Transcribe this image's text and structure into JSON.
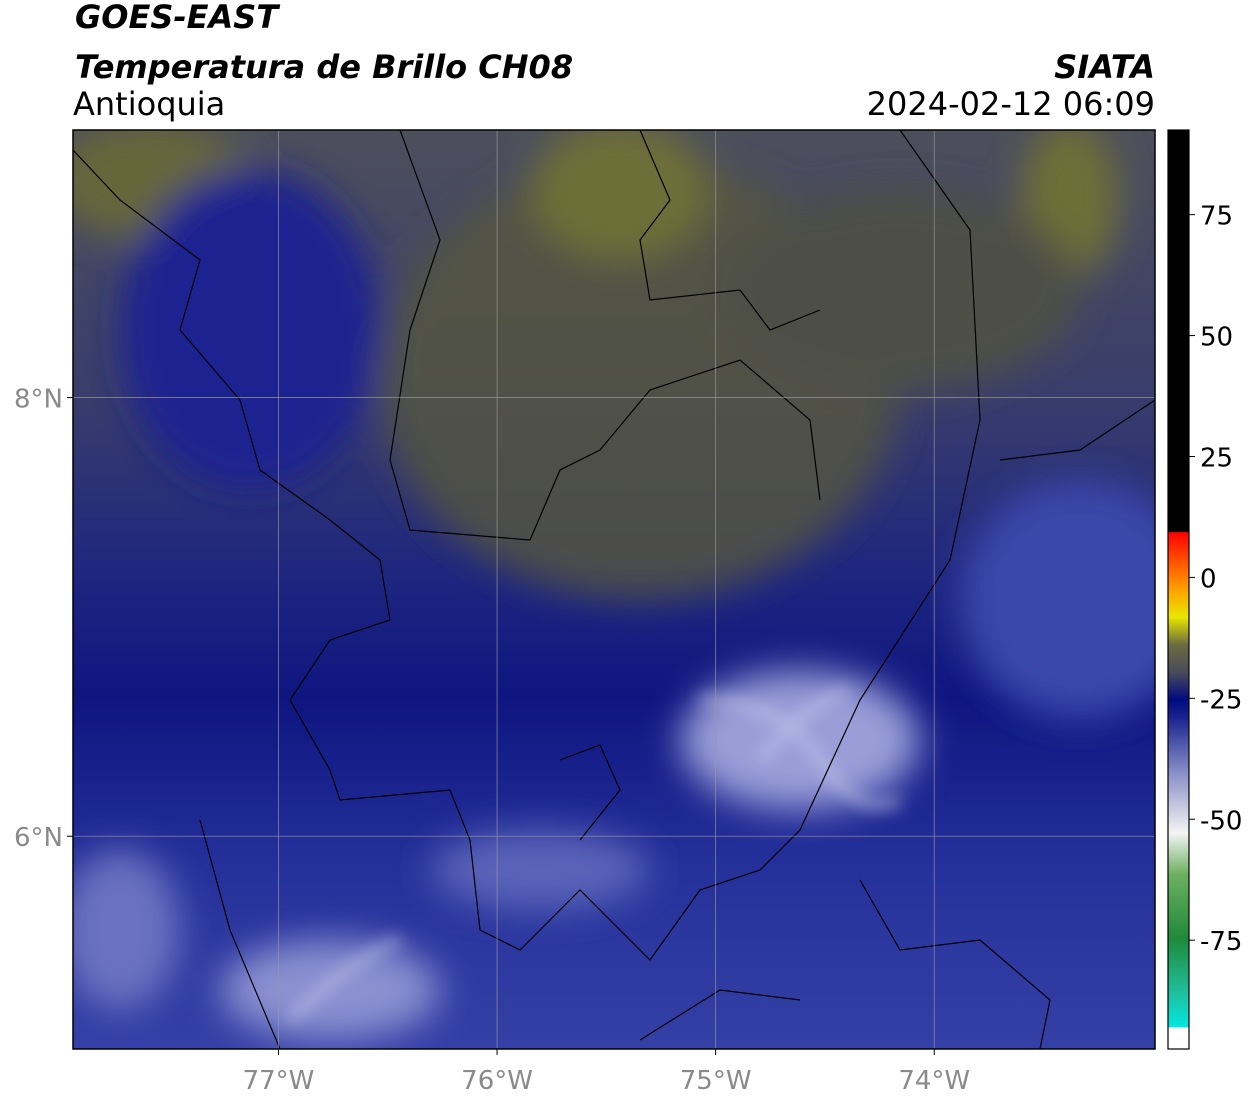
{
  "header": {
    "satellite": "GOES-EAST",
    "product": "Temperatura de Brillo CH08",
    "region": "Antioquia",
    "source": "SIATA",
    "datetime": "2024-02-12 06:09"
  },
  "map": {
    "xlim": [
      -77.94,
      -72.99
    ],
    "ylim": [
      5.03,
      9.22
    ],
    "xticks": [
      {
        "value": -77,
        "label": "77°W"
      },
      {
        "value": -76,
        "label": "76°W"
      },
      {
        "value": -75,
        "label": "75°W"
      },
      {
        "value": -74,
        "label": "74°W"
      }
    ],
    "yticks": [
      {
        "value": 8,
        "label": "8°N"
      },
      {
        "value": 6,
        "label": "6°N"
      }
    ]
  },
  "colorbar": {
    "ylim": [
      -97.5,
      92.5
    ],
    "yticks": [
      75,
      50,
      25,
      0,
      -25,
      -50,
      -75
    ]
  }
}
